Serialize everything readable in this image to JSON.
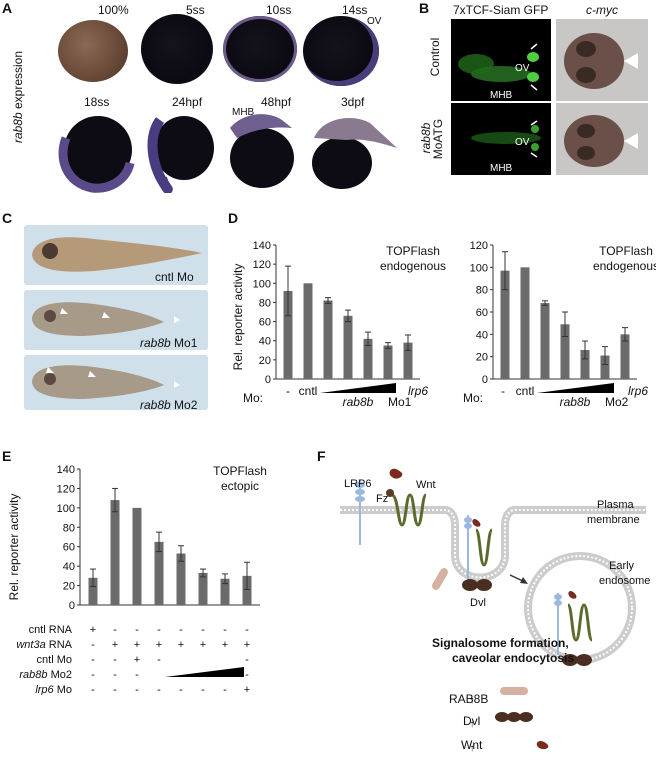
{
  "panel_a": {
    "label": "A",
    "ylabel": "rab8b expression",
    "stages_row1": [
      "100%",
      "5ss",
      "10ss",
      "14ss"
    ],
    "ov": "OV",
    "stages_row2": [
      "18ss",
      "24hpf",
      "48hpf",
      "3dpf"
    ],
    "mhb": "MHB"
  },
  "panel_b": {
    "label": "B",
    "col1": "7xTCF-Siam GFP",
    "col2": "c-myc",
    "row1": "Control",
    "row2_a": "rab8b",
    "row2_b": "MoATG",
    "ov": "OV",
    "mhb": "MHB"
  },
  "panel_c": {
    "label": "C",
    "cap1": "cntl Mo",
    "cap2_i": "rab8b",
    "cap2": "Mo1",
    "cap3_i": "rab8b",
    "cap3": "Mo2"
  },
  "panel_d": {
    "label": "D",
    "note1": "TOPFlash",
    "note2": "endogenous",
    "mo_label": "Mo:",
    "left_mo": "rab8b",
    "left_mo_suffix": "Mo1",
    "right_mo": "rab8b",
    "right_mo_suffix": "Mo2",
    "cntl": "cntl",
    "lrp6": "lrp6",
    "dash": "-"
  },
  "panel_e": {
    "label": "E",
    "note1": "TOPFlash",
    "note2": "ectopic",
    "row_labels": [
      "cntl RNA",
      "wnt3a RNA",
      "cntl Mo",
      "rab8b Mo2",
      "lrp6 Mo"
    ],
    "row_italic_part": [
      "",
      "wnt3a",
      "",
      "rab8b",
      "lrp6"
    ],
    "rows": [
      [
        "+",
        "-",
        "-",
        "-",
        "-",
        "-",
        "-",
        "-"
      ],
      [
        "-",
        "+",
        "+",
        "+",
        "+",
        "+",
        "+",
        "+"
      ],
      [
        "-",
        "-",
        "+",
        "-",
        "",
        "",
        "",
        "-"
      ],
      [
        "-",
        "-",
        "-",
        "",
        "",
        "",
        "",
        "-"
      ],
      [
        "-",
        "-",
        "-",
        "-",
        "-",
        "-",
        "-",
        "+"
      ]
    ]
  },
  "panel_f": {
    "label": "F",
    "lrp6": "LRP6",
    "wnt": "Wnt",
    "fz": "Fz",
    "pm1": "Plasma",
    "pm2": "membrane",
    "ee1": "Early",
    "ee2": "endosome",
    "dvl": "Dvl",
    "title1": "Signalosome formation,",
    "title2": "caveolar endocytosis",
    "chain": [
      "RAB8B",
      "Dvl",
      "Wnt"
    ]
  },
  "chart_data": [
    {
      "type": "bar",
      "title": "TOPFlash endogenous",
      "ylabel": "Rel. reporter activity",
      "ylim": [
        0,
        140
      ],
      "yticks": [
        0,
        20,
        40,
        60,
        80,
        100,
        120,
        140
      ],
      "categories": [
        "-",
        "cntl",
        "rab8b Mo1 (1)",
        "rab8b Mo1 (2)",
        "rab8b Mo1 (3)",
        "rab8b Mo1 (4)",
        "lrp6"
      ],
      "values": [
        92,
        100,
        82,
        66,
        42,
        35,
        38
      ],
      "errors": [
        26,
        0,
        3,
        6,
        7,
        3,
        8
      ]
    },
    {
      "type": "bar",
      "title": "TOPFlash endogenous",
      "ylabel": "",
      "ylim": [
        0,
        120
      ],
      "yticks": [
        0,
        20,
        40,
        60,
        80,
        100,
        120
      ],
      "categories": [
        "-",
        "cntl",
        "rab8b Mo2 (1)",
        "rab8b Mo2 (2)",
        "rab8b Mo2 (3)",
        "rab8b Mo2 (4)",
        "lrp6"
      ],
      "values": [
        97,
        100,
        68,
        49,
        26,
        21,
        40
      ],
      "errors": [
        17,
        0,
        2,
        11,
        8,
        8,
        6
      ]
    },
    {
      "type": "bar",
      "title": "TOPFlash ectopic",
      "ylabel": "Rel. reporter activity",
      "ylim": [
        0,
        140
      ],
      "yticks": [
        0,
        20,
        40,
        60,
        80,
        100,
        120,
        140
      ],
      "categories": [
        "1",
        "2",
        "3",
        "4",
        "5",
        "6",
        "7",
        "8"
      ],
      "values": [
        28,
        108,
        100,
        65,
        53,
        33,
        27,
        30
      ],
      "errors": [
        9,
        12,
        0,
        10,
        8,
        4,
        5,
        14
      ]
    }
  ]
}
